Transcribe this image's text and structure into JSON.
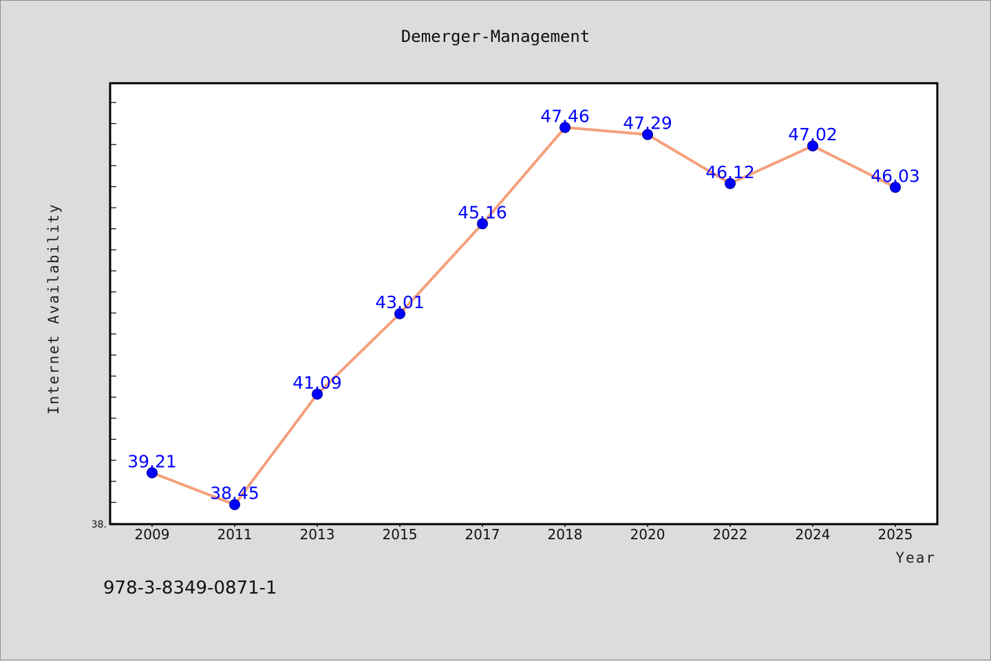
{
  "chart_data": {
    "type": "line",
    "title": "Demerger-Management",
    "xlabel": "Year",
    "ylabel": "Internet Availability",
    "categories": [
      "2009",
      "2011",
      "2013",
      "2015",
      "2017",
      "2018",
      "2020",
      "2022",
      "2024",
      "2025"
    ],
    "series": [
      {
        "values": [
          39.21,
          38.45,
          41.09,
          43.01,
          45.16,
          47.46,
          47.29,
          46.12,
          47.02,
          46.03
        ]
      }
    ],
    "data_labels": [
      "39.21",
      "38.45",
      "41.09",
      "43.01",
      "45.16",
      "47.46",
      "47.29",
      "46.12",
      "47.02",
      "46.03"
    ],
    "y_tick_label": "38.",
    "ylim": [
      38.0,
      48.5
    ],
    "grid": false,
    "line_color": "#f4a07c",
    "marker_color": "#0000ff",
    "label_color": "#0000ff"
  },
  "footer": {
    "text": "978-3-8349-0871-1"
  }
}
